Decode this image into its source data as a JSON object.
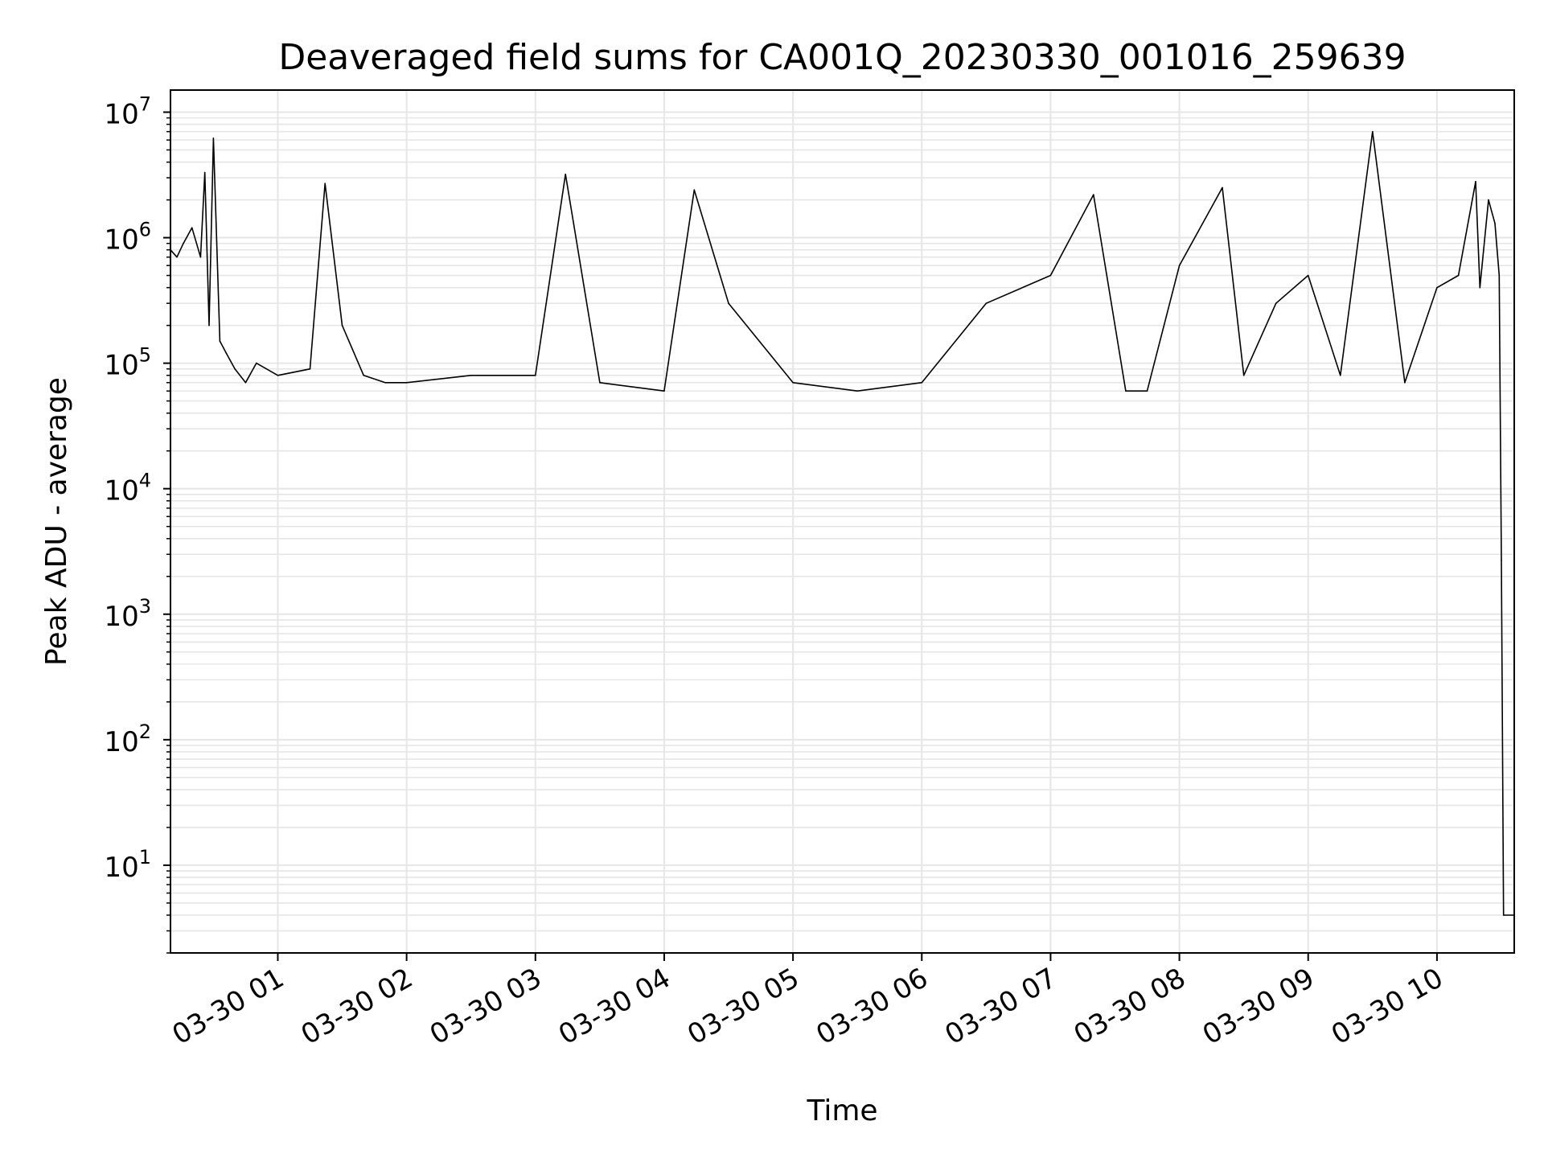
{
  "chart_data": {
    "type": "line",
    "title": "Deaveraged field sums for CA001Q_20230330_001016_259639",
    "xlabel": "Time",
    "ylabel": "Peak ADU - average",
    "yscale": "log",
    "ylim": [
      2,
      15000000
    ],
    "xlim": [
      "2023-03-30 00:10",
      "2023-03-30 10:36"
    ],
    "grid": true,
    "grid_color": "#e6e6e6",
    "line_color": "#000000",
    "x_tick_labels": [
      "03-30 01",
      "03-30 02",
      "03-30 03",
      "03-30 04",
      "03-30 05",
      "03-30 06",
      "03-30 07",
      "03-30 08",
      "03-30 09",
      "03-30 10"
    ],
    "x_ticks": [
      "2023-03-30 01:00",
      "2023-03-30 02:00",
      "2023-03-30 03:00",
      "2023-03-30 04:00",
      "2023-03-30 05:00",
      "2023-03-30 06:00",
      "2023-03-30 07:00",
      "2023-03-30 08:00",
      "2023-03-30 09:00",
      "2023-03-30 10:00"
    ],
    "y_ticks": [
      10,
      100,
      1000,
      10000,
      100000,
      1000000,
      10000000
    ],
    "y_tick_labels": [
      {
        "base": "10",
        "exp": "1"
      },
      {
        "base": "10",
        "exp": "2"
      },
      {
        "base": "10",
        "exp": "3"
      },
      {
        "base": "10",
        "exp": "4"
      },
      {
        "base": "10",
        "exp": "5"
      },
      {
        "base": "10",
        "exp": "6"
      },
      {
        "base": "10",
        "exp": "7"
      }
    ],
    "series": [
      {
        "x": [
          "2023-03-30 00:10",
          "2023-03-30 00:13",
          "2023-03-30 00:16",
          "2023-03-30 00:20",
          "2023-03-30 00:24",
          "2023-03-30 00:26",
          "2023-03-30 00:28",
          "2023-03-30 00:30",
          "2023-03-30 00:33",
          "2023-03-30 00:36",
          "2023-03-30 00:40",
          "2023-03-30 00:45",
          "2023-03-30 00:50",
          "2023-03-30 01:00",
          "2023-03-30 01:15",
          "2023-03-30 01:22",
          "2023-03-30 01:30",
          "2023-03-30 01:40",
          "2023-03-30 01:50",
          "2023-03-30 02:00",
          "2023-03-30 02:30",
          "2023-03-30 03:00",
          "2023-03-30 03:14",
          "2023-03-30 03:30",
          "2023-03-30 04:00",
          "2023-03-30 04:14",
          "2023-03-30 04:30",
          "2023-03-30 05:00",
          "2023-03-30 05:30",
          "2023-03-30 06:00",
          "2023-03-30 06:30",
          "2023-03-30 07:00",
          "2023-03-30 07:20",
          "2023-03-30 07:35",
          "2023-03-30 07:45",
          "2023-03-30 08:00",
          "2023-03-30 08:20",
          "2023-03-30 08:30",
          "2023-03-30 08:45",
          "2023-03-30 09:00",
          "2023-03-30 09:15",
          "2023-03-30 09:30",
          "2023-03-30 09:45",
          "2023-03-30 10:00",
          "2023-03-30 10:10",
          "2023-03-30 10:18",
          "2023-03-30 10:20",
          "2023-03-30 10:24",
          "2023-03-30 10:27",
          "2023-03-30 10:29",
          "2023-03-30 10:30",
          "2023-03-30 10:31",
          "2023-03-30 10:36"
        ],
        "y": [
          800000,
          700000,
          900000,
          1200000,
          700000,
          3300000,
          200000,
          6200000,
          150000,
          120000,
          90000,
          70000,
          100000,
          80000,
          90000,
          2700000,
          200000,
          80000,
          70000,
          70000,
          80000,
          80000,
          3200000,
          70000,
          60000,
          2400000,
          300000,
          70000,
          60000,
          70000,
          300000,
          500000,
          2200000,
          60000,
          60000,
          600000,
          2500000,
          80000,
          300000,
          500000,
          80000,
          7000000,
          70000,
          400000,
          500000,
          2800000,
          400000,
          2000000,
          1300000,
          500000,
          2700,
          4,
          4
        ]
      }
    ]
  }
}
